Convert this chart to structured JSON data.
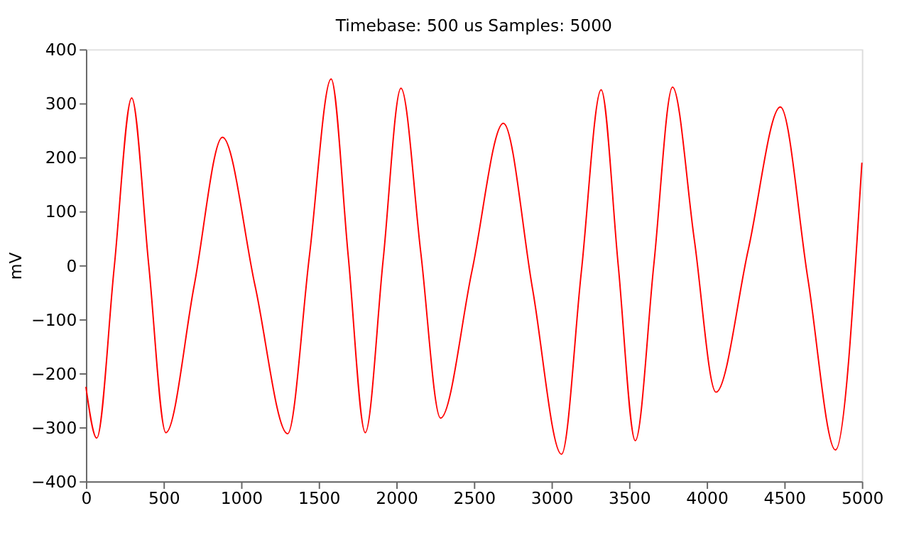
{
  "chart_data": {
    "type": "line",
    "title": "Timebase: 500 us Samples: 5000",
    "ylabel": "mV",
    "x": [
      0,
      70,
      182,
      295,
      405,
      515,
      698,
      880,
      1090,
      1300,
      1440,
      1580,
      1690,
      1800,
      1915,
      2030,
      2158,
      2285,
      2488,
      2690,
      2878,
      3065,
      3192,
      3320,
      3430,
      3540,
      3660,
      3780,
      3920,
      4060,
      4268,
      4475,
      4652,
      4830,
      5000
    ],
    "series": [
      {
        "color": "#ff0000",
        "values": [
          -225,
          -320,
          -5,
          310,
          0,
          -310,
          -37,
          237,
          -38,
          -312,
          17,
          345,
          18,
          -310,
          9,
          328,
          23,
          -283,
          -10,
          263,
          -44,
          -350,
          -13,
          325,
          0,
          -325,
          3,
          330,
          48,
          -235,
          29,
          293,
          -25,
          -342,
          190
        ]
      }
    ],
    "xlim": [
      0,
      5000
    ],
    "xticks": [
      0,
      500,
      1000,
      1500,
      2000,
      2500,
      3000,
      3500,
      4000,
      4500,
      5000
    ],
    "ylim": [
      -400,
      400
    ],
    "yticks": [
      -400,
      -300,
      -200,
      -100,
      0,
      100,
      200,
      300,
      400
    ],
    "grid": false,
    "legend": false,
    "marker": "none",
    "line_style": "solid"
  }
}
